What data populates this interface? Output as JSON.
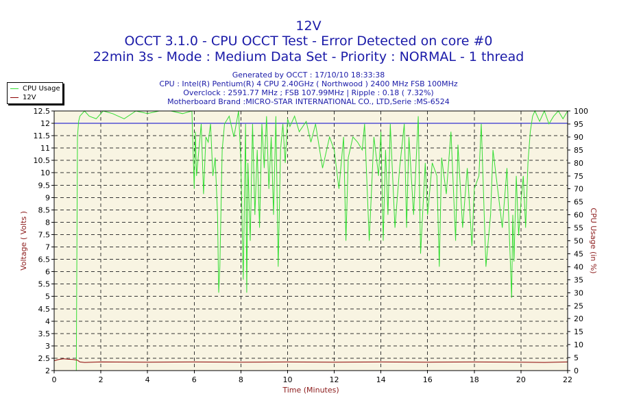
{
  "header": {
    "title": "12V",
    "line2": "OCCT 3.1.0 - CPU OCCT Test - Error Detected on core #0",
    "line3": "22min 3s - Mode : Medium Data Set - Priority : NORMAL - 1 thread",
    "generated": "Generated by OCCT : 17/10/10 18:33:38",
    "cpu": "CPU : Intel(R) Pentium(R) 4 CPU 2.40GHz ( Northwood ) 2400 MHz FSB 100MHz",
    "overclock": "Overclock : 2591.77 MHz ; FSB 107.99MHz | Ripple : 0.18 ( 7.32%)",
    "motherboard": "Motherboard Brand :MICRO-STAR INTERNATIONAL CO., LTD,Serie :MS-6524"
  },
  "colors": {
    "plot_bg": "#f8f4e2",
    "cpu_line": "#33dd33",
    "volt_line": "#8b0000",
    "ref_line": "#0000cc",
    "axis_label": "#8b1a1a",
    "grid": "#333333"
  },
  "chart_data": {
    "type": "line",
    "xlabel": "Time (Minutes)",
    "ylabel_left": "Voltage ( Volts )",
    "ylabel_right": "CPU Usage (in %)",
    "xlim": [
      0,
      22
    ],
    "ylim_left": [
      2,
      12.5
    ],
    "ylim_right": [
      0,
      100
    ],
    "x_ticks": [
      "0",
      "2",
      "4",
      "6",
      "8",
      "10",
      "12",
      "14",
      "16",
      "18",
      "20",
      "22"
    ],
    "y_left_ticks": [
      "2",
      "2.5",
      "3",
      "3.5",
      "4",
      "4.5",
      "5",
      "5.5",
      "6",
      "6.5",
      "7",
      "7.5",
      "8",
      "8.5",
      "9",
      "9.5",
      "10",
      "10.5",
      "11",
      "11.5",
      "12",
      "12.5"
    ],
    "y_right_ticks": [
      "0",
      "5",
      "10",
      "15",
      "20",
      "25",
      "30",
      "35",
      "40",
      "45",
      "50",
      "55",
      "60",
      "65",
      "70",
      "75",
      "80",
      "85",
      "90",
      "95",
      "100"
    ],
    "reference_line": {
      "axis": "left",
      "value": 12
    },
    "grid": true,
    "legend_position": "top-left",
    "series": [
      {
        "name": "CPU Usage",
        "axis": "right",
        "x": [
          0,
          0.95,
          1.0,
          1.05,
          1.1,
          1.3,
          1.5,
          1.8,
          2.1,
          2.5,
          3.0,
          3.5,
          4.0,
          4.5,
          5.0,
          5.5,
          5.9,
          6.0,
          6.05,
          6.1,
          6.2,
          6.3,
          6.4,
          6.5,
          6.6,
          6.7,
          6.8,
          6.9,
          7.0,
          7.05,
          7.1,
          7.2,
          7.3,
          7.5,
          7.7,
          7.9,
          8.0,
          8.1,
          8.2,
          8.25,
          8.3,
          8.4,
          8.5,
          8.6,
          8.7,
          8.8,
          8.9,
          9.0,
          9.1,
          9.2,
          9.3,
          9.4,
          9.5,
          9.6,
          9.7,
          9.8,
          9.9,
          10.0,
          10.1,
          10.3,
          10.5,
          10.8,
          11.0,
          11.2,
          11.5,
          11.8,
          12.0,
          12.2,
          12.4,
          12.5,
          12.6,
          12.8,
          13.0,
          13.2,
          13.3,
          13.5,
          13.7,
          13.9,
          14.0,
          14.1,
          14.2,
          14.3,
          14.4,
          14.6,
          14.8,
          15.0,
          15.1,
          15.2,
          15.4,
          15.6,
          15.7,
          15.9,
          16.0,
          16.2,
          16.4,
          16.5,
          16.6,
          16.8,
          17.0,
          17.2,
          17.3,
          17.5,
          17.7,
          17.9,
          18.0,
          18.2,
          18.3,
          18.5,
          18.7,
          18.8,
          19.0,
          19.2,
          19.4,
          19.6,
          19.65,
          19.7,
          19.8,
          19.9,
          20.0,
          20.1,
          20.2,
          20.3,
          20.4,
          20.5,
          20.6,
          20.8,
          21.0,
          21.2,
          21.4,
          21.6,
          21.8,
          22.0
        ],
        "values": [
          0,
          0,
          90,
          96,
          98,
          100,
          98,
          97,
          100,
          99,
          97,
          100,
          99,
          100,
          100,
          99,
          100,
          70,
          92,
          75,
          85,
          95,
          68,
          90,
          88,
          95,
          75,
          82,
          60,
          30,
          40,
          85,
          95,
          98,
          90,
          100,
          80,
          35,
          95,
          30,
          80,
          50,
          95,
          60,
          85,
          55,
          95,
          78,
          98,
          70,
          90,
          60,
          98,
          40,
          85,
          95,
          80,
          97,
          94,
          98,
          92,
          96,
          88,
          95,
          78,
          90,
          85,
          70,
          90,
          50,
          82,
          90,
          88,
          85,
          95,
          50,
          90,
          75,
          92,
          50,
          85,
          60,
          95,
          55,
          78,
          95,
          55,
          90,
          60,
          98,
          45,
          80,
          60,
          80,
          75,
          40,
          82,
          68,
          92,
          50,
          87,
          55,
          78,
          48,
          70,
          75,
          95,
          40,
          60,
          85,
          70,
          55,
          78,
          28,
          60,
          42,
          75,
          52,
          65,
          75,
          55,
          80,
          92,
          98,
          100,
          96,
          100,
          95,
          98,
          100,
          97,
          100
        ],
        "color": "#33dd33"
      },
      {
        "name": "12V",
        "axis": "left",
        "x": [
          0,
          0.2,
          0.4,
          0.6,
          0.8,
          1.0,
          1.1,
          1.3,
          2,
          4,
          6,
          8,
          10,
          12,
          14,
          16,
          18,
          20,
          21,
          22
        ],
        "values": [
          2.4,
          2.45,
          2.48,
          2.46,
          2.45,
          2.42,
          2.35,
          2.33,
          2.35,
          2.34,
          2.35,
          2.34,
          2.35,
          2.34,
          2.35,
          2.34,
          2.35,
          2.34,
          2.33,
          2.35
        ],
        "color": "#8b0000"
      }
    ]
  }
}
